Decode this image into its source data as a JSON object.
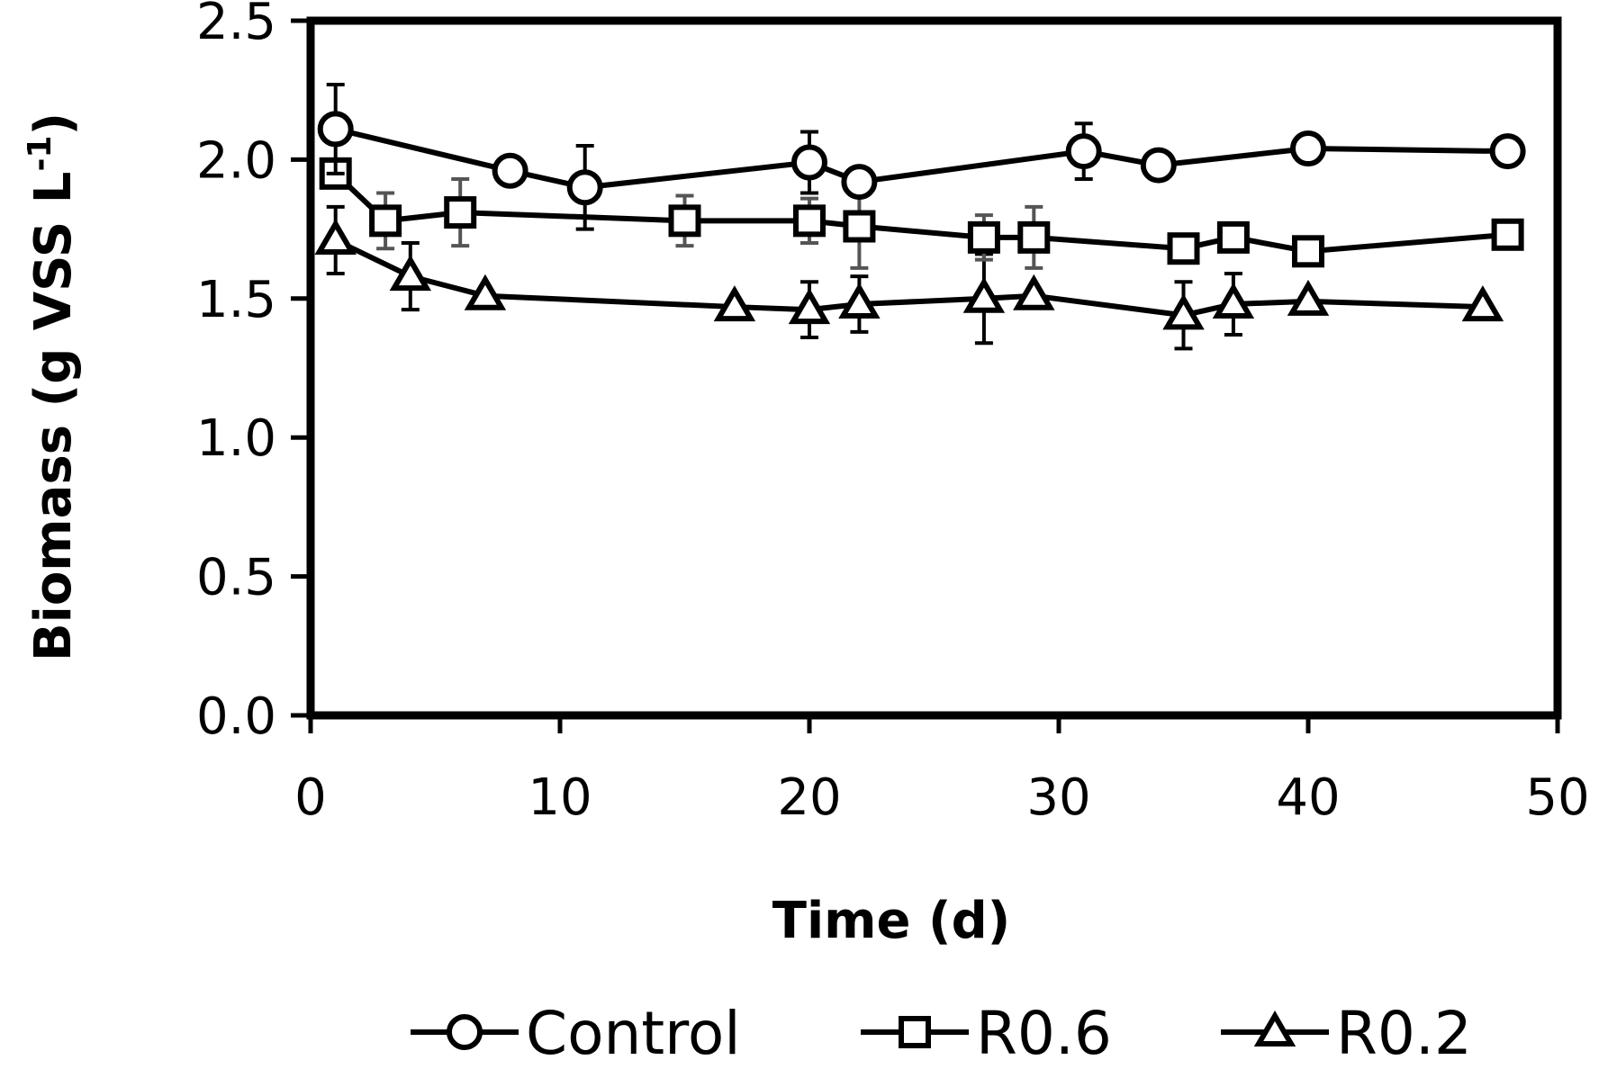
{
  "chart_data": {
    "type": "line",
    "title": "",
    "xlabel": "Time (d)",
    "ylabel_main": "Biomass (g VSS L",
    "ylabel_sup": "-1",
    "ylabel_close": ")",
    "xlim": [
      0,
      50
    ],
    "ylim": [
      0,
      2.5
    ],
    "x_ticks": [
      0,
      10,
      20,
      30,
      40,
      50
    ],
    "x_tick_labels": [
      "0",
      "10",
      "20",
      "30",
      "40",
      "50"
    ],
    "y_ticks": [
      0,
      0.5,
      1.0,
      1.5,
      2.0,
      2.5
    ],
    "y_tick_labels": [
      "0.0",
      "0.5",
      "1.0",
      "1.5",
      "2.0",
      "2.5"
    ],
    "grid": false,
    "legend_position": "bottom",
    "series": [
      {
        "name": "Control",
        "marker": "circle",
        "x": [
          1,
          8,
          11,
          20,
          22,
          31,
          34,
          40,
          48
        ],
        "y": [
          2.11,
          1.96,
          1.9,
          1.99,
          1.92,
          2.03,
          1.98,
          2.04,
          2.03
        ],
        "err": [
          0.16,
          0,
          0.15,
          0.11,
          0,
          0.1,
          0,
          0,
          0
        ]
      },
      {
        "name": "R0.6",
        "marker": "square",
        "x": [
          1,
          3,
          6,
          15,
          20,
          22,
          27,
          29,
          35,
          37,
          40,
          48
        ],
        "y": [
          1.95,
          1.78,
          1.81,
          1.78,
          1.78,
          1.76,
          1.72,
          1.72,
          1.68,
          1.72,
          1.67,
          1.73
        ],
        "err": [
          0,
          0.1,
          0.12,
          0.09,
          0.08,
          0.15,
          0.08,
          0.11,
          0,
          0,
          0,
          0
        ]
      },
      {
        "name": "R0.2",
        "marker": "triangle",
        "x": [
          1,
          4,
          7,
          17,
          20,
          22,
          27,
          29,
          35,
          37,
          40,
          47
        ],
        "y": [
          1.71,
          1.58,
          1.51,
          1.47,
          1.46,
          1.48,
          1.5,
          1.51,
          1.44,
          1.48,
          1.49,
          1.47
        ],
        "err": [
          0.12,
          0.12,
          0,
          0,
          0.1,
          0.1,
          0.16,
          0,
          0.12,
          0.11,
          0,
          0
        ]
      }
    ]
  }
}
